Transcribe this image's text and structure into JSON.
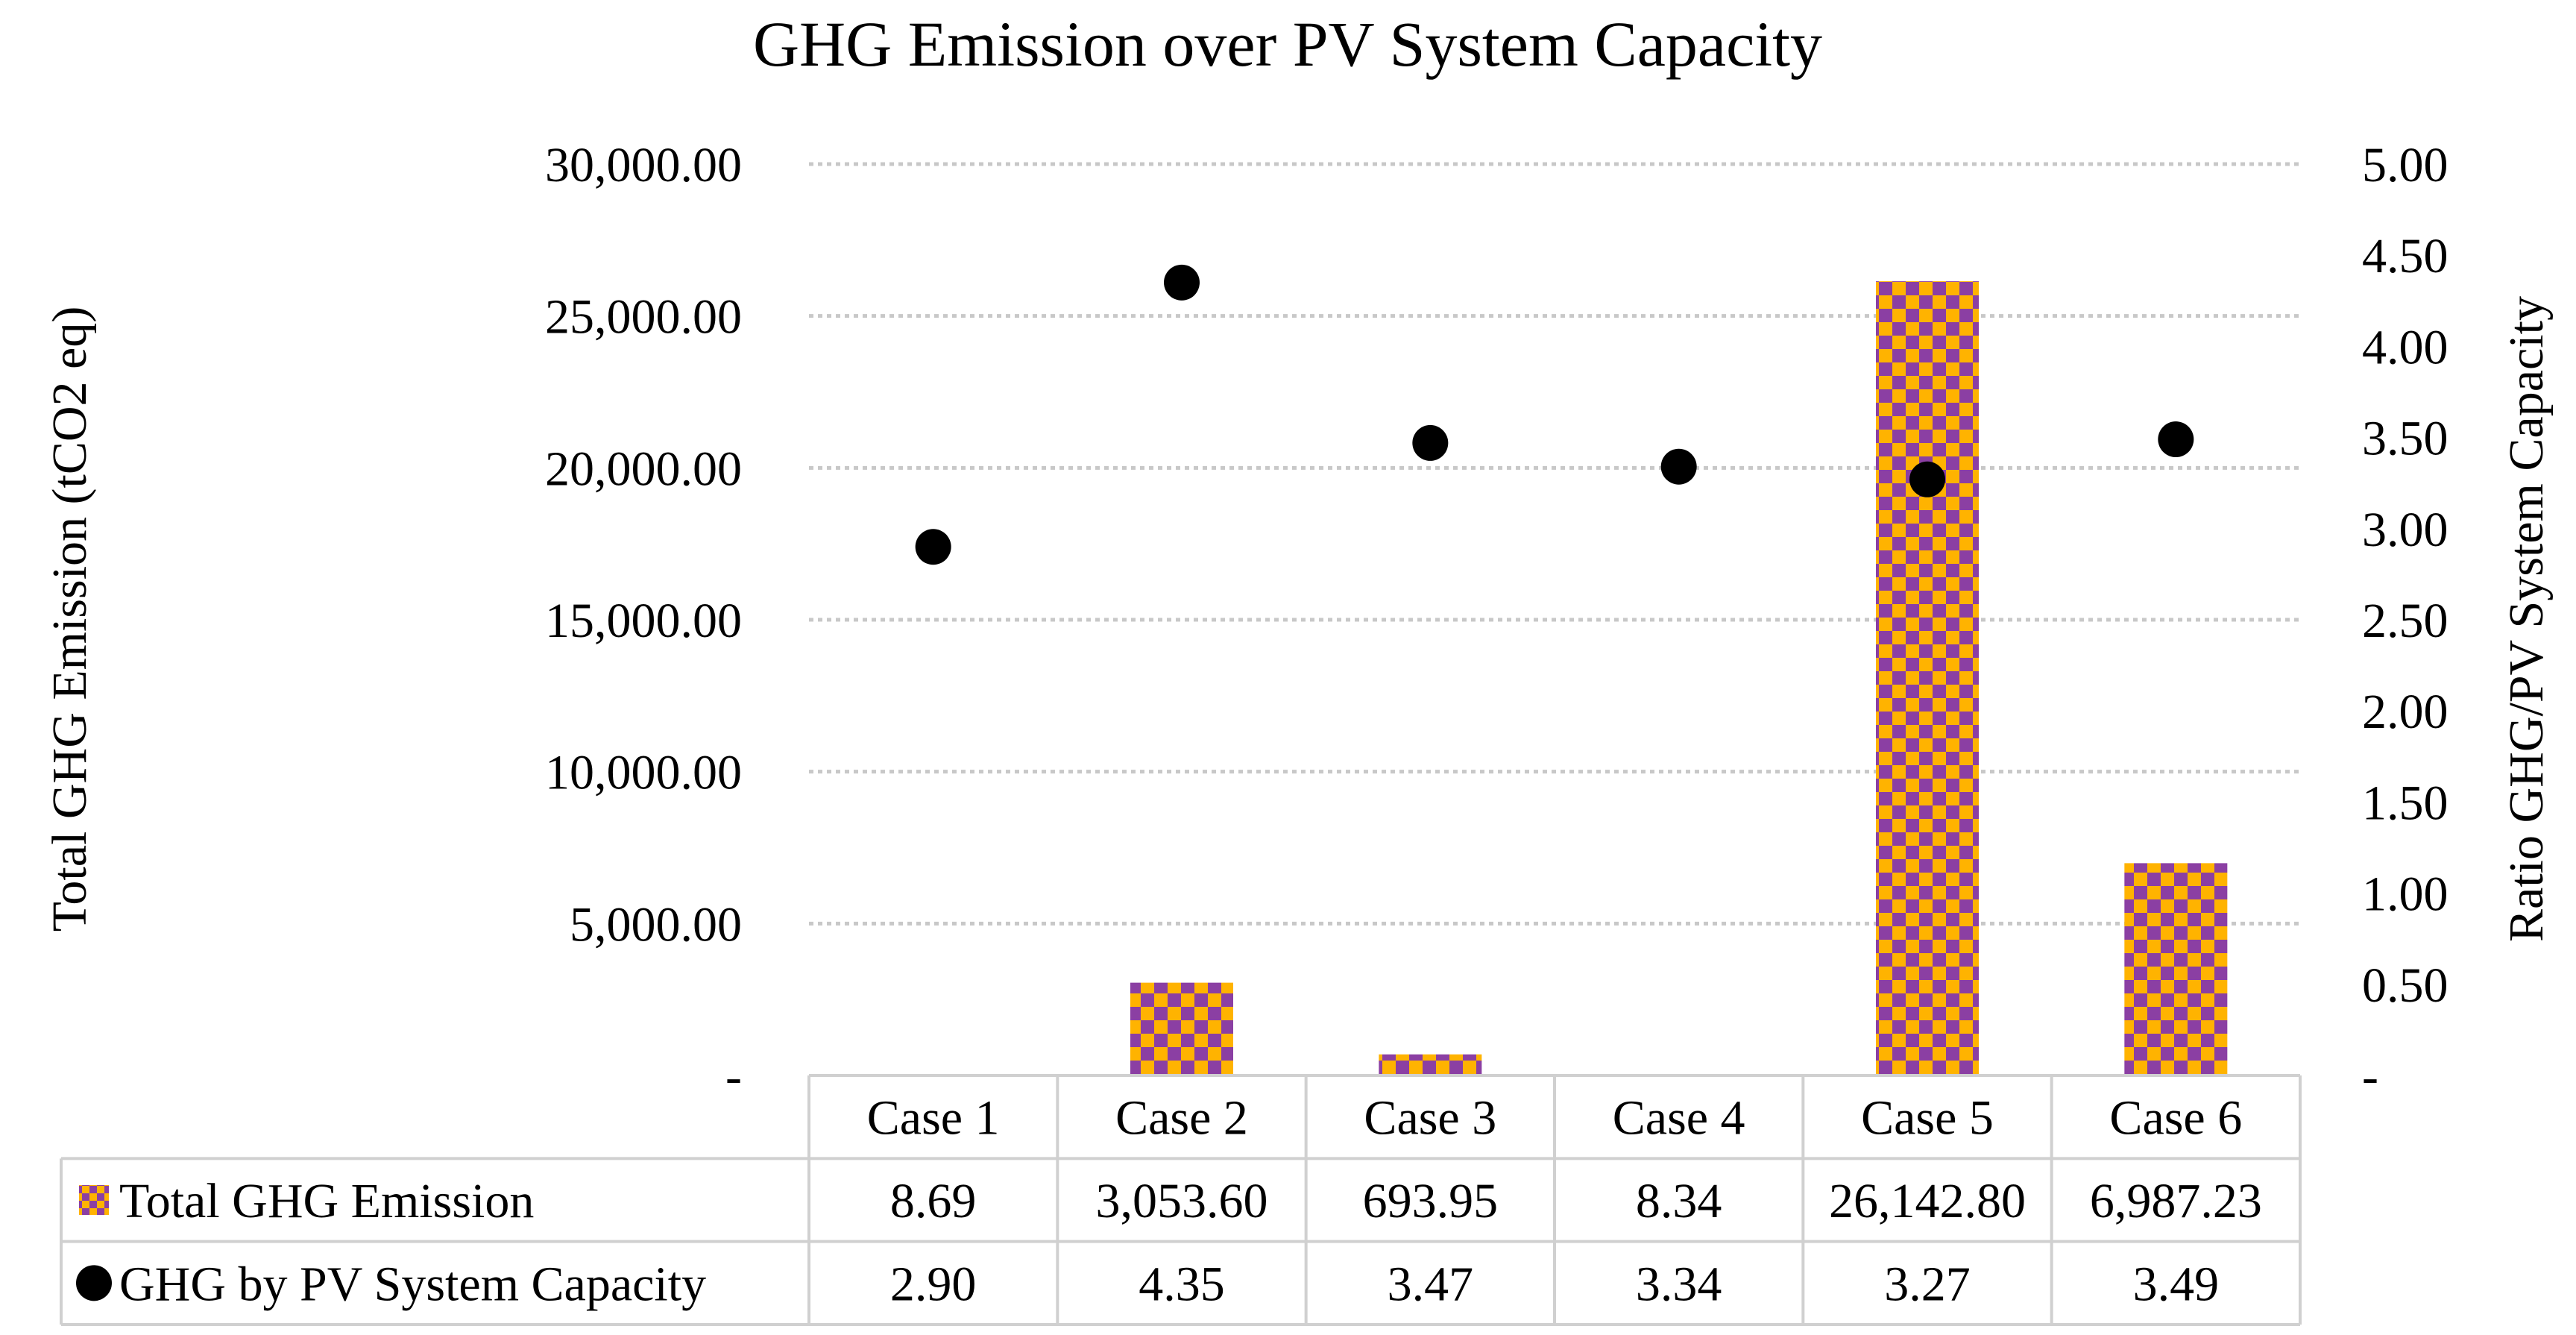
{
  "chart_data": {
    "type": "bar",
    "title": "GHG Emission over PV System Capacity",
    "ylabel": "Total GHG Emission (tCO2 eq)",
    "y2label": "Ratio GHG/PV System Capacity",
    "categories": [
      "Case 1",
      "Case 2",
      "Case 3",
      "Case 4",
      "Case 5",
      "Case 6"
    ],
    "ylim": [
      0,
      30000
    ],
    "y2lim": [
      0,
      5
    ],
    "y_ticks": [
      0,
      5000,
      10000,
      15000,
      20000,
      25000,
      30000
    ],
    "y_tick_labels": [
      "-",
      "5,000.00",
      "10,000.00",
      "15,000.00",
      "20,000.00",
      "25,000.00",
      "30,000.00"
    ],
    "y2_ticks": [
      0,
      0.5,
      1,
      1.5,
      2,
      2.5,
      3,
      3.5,
      4,
      4.5,
      5
    ],
    "y2_tick_labels": [
      "-",
      "0.50",
      "1.00",
      "1.50",
      "2.00",
      "2.50",
      "3.00",
      "3.50",
      "4.00",
      "4.50",
      "5.00"
    ],
    "grid": true,
    "colors": {
      "checker_a": "#FFB300",
      "checker_b": "#8B3FA3",
      "marker": "#000000",
      "grid": "#C8C8C8",
      "table_border": "#D0D0D0"
    },
    "series": [
      {
        "name": "Total GHG Emission",
        "type": "bar",
        "axis": "left",
        "values": [
          8.69,
          3053.6,
          693.95,
          8.34,
          26142.8,
          6987.23
        ],
        "labels": [
          "8.69",
          "3,053.60",
          "693.95",
          "8.34",
          "26,142.80",
          "6,987.23"
        ]
      },
      {
        "name": "GHG by PV System Capacity",
        "type": "scatter",
        "axis": "right",
        "values": [
          2.9,
          4.35,
          3.47,
          3.34,
          3.27,
          3.49
        ],
        "labels": [
          "2.90",
          "4.35",
          "3.47",
          "3.34",
          "3.27",
          "3.49"
        ]
      }
    ]
  }
}
